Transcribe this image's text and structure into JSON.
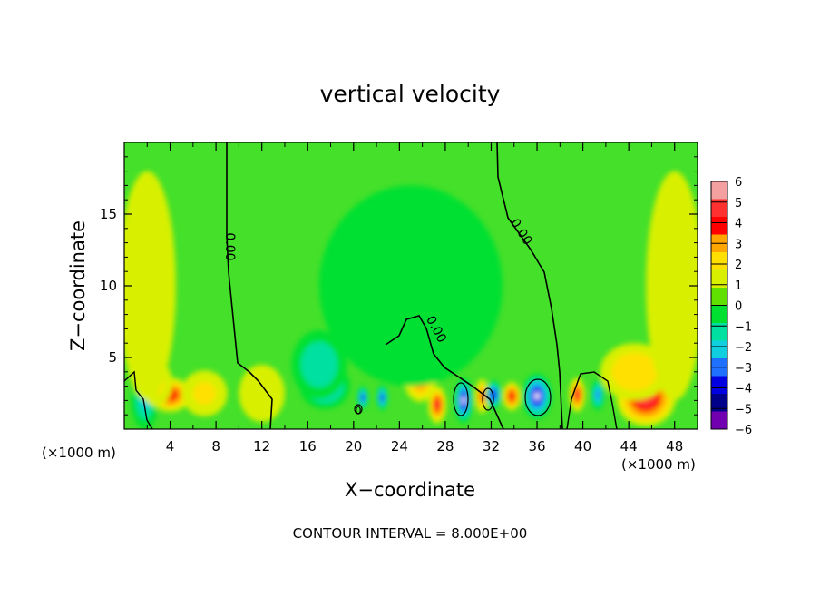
{
  "chart_data": {
    "type": "heatmap",
    "title": "vertical velocity",
    "xlabel": "X−coordinate",
    "ylabel": "Z−coordinate",
    "x_unit_left": "(×1000 m)",
    "x_unit_right": "(×1000 m)",
    "footer": "CONTOUR INTERVAL = 8.000E+00",
    "xlim": [
      0,
      50
    ],
    "ylim": [
      0,
      20
    ],
    "x_ticks": [
      4,
      8,
      12,
      16,
      20,
      24,
      28,
      32,
      36,
      40,
      44,
      48
    ],
    "x_tick_labels": [
      "4",
      "8",
      "12",
      "16",
      "20",
      "24",
      "28",
      "32",
      "36",
      "40",
      "44",
      "48"
    ],
    "y_ticks": [
      5,
      10,
      15
    ],
    "y_tick_labels": [
      "5",
      "10",
      "15"
    ],
    "contour_labels": [
      "0.00",
      "0.00",
      "0.00",
      "0"
    ],
    "colorbar": {
      "levels": [
        6,
        5,
        4,
        3,
        2,
        1,
        0,
        -1,
        -2,
        -3,
        -4,
        -5,
        -6
      ],
      "labels": [
        "6",
        "5",
        "4",
        "3",
        "2",
        "1",
        "0",
        "−1",
        "−2",
        "−3",
        "−4",
        "−5",
        "−6"
      ],
      "colors": [
        "#f4a0a0",
        "#ff3030",
        "#ff0000",
        "#ffa500",
        "#ffe000",
        "#d8f000",
        "#60e000",
        "#00e030",
        "#00e0a0",
        "#10d0e0",
        "#2070ff",
        "#0000e0",
        "#00008a",
        "#7000b0"
      ]
    },
    "features": [
      {
        "x": 1.8,
        "z": 2.0,
        "w": -2.5,
        "rx": 1.2,
        "rz": 2.0
      },
      {
        "x": 4.0,
        "z": 2.4,
        "w": 4.2,
        "rx": 1.8,
        "rz": 1.2
      },
      {
        "x": 2.8,
        "z": 3.2,
        "w": 2.0,
        "rx": 1.4,
        "rz": 1.6
      },
      {
        "x": 7.0,
        "z": 2.5,
        "w": 1.6,
        "rx": 2.0,
        "rz": 1.6
      },
      {
        "x": 12.0,
        "z": 2.5,
        "w": 1.2,
        "rx": 2.0,
        "rz": 2.0
      },
      {
        "x": 17.5,
        "z": 3.0,
        "w": -3.4,
        "rx": 2.2,
        "rz": 1.6
      },
      {
        "x": 17.0,
        "z": 4.5,
        "w": -2.2,
        "rx": 2.4,
        "rz": 2.4
      },
      {
        "x": 20.8,
        "z": 2.2,
        "w": -4.5,
        "rx": 0.5,
        "rz": 0.8
      },
      {
        "x": 22.5,
        "z": 2.2,
        "w": -4.8,
        "rx": 0.5,
        "rz": 0.9
      },
      {
        "x": 25.8,
        "z": 3.5,
        "w": 3.5,
        "rx": 1.4,
        "rz": 1.6
      },
      {
        "x": 27.3,
        "z": 1.7,
        "w": 5.0,
        "rx": 0.8,
        "rz": 1.3
      },
      {
        "x": 29.6,
        "z": 2.0,
        "w": -5.8,
        "rx": 0.8,
        "rz": 1.6
      },
      {
        "x": 31.2,
        "z": 2.3,
        "w": 4.0,
        "rx": 0.6,
        "rz": 1.2
      },
      {
        "x": 32.2,
        "z": 2.4,
        "w": -5.2,
        "rx": 0.7,
        "rz": 1.0
      },
      {
        "x": 33.8,
        "z": 2.3,
        "w": 4.5,
        "rx": 0.8,
        "rz": 1.0
      },
      {
        "x": 36.0,
        "z": 2.3,
        "w": -6.0,
        "rx": 1.3,
        "rz": 1.6
      },
      {
        "x": 39.5,
        "z": 2.4,
        "w": 4.6,
        "rx": 0.7,
        "rz": 1.2
      },
      {
        "x": 41.3,
        "z": 2.4,
        "w": -3.6,
        "rx": 0.6,
        "rz": 1.1
      },
      {
        "x": 45.5,
        "z": 2.2,
        "w": 5.4,
        "rx": 2.6,
        "rz": 2.0
      },
      {
        "x": 44.5,
        "z": 4.0,
        "w": 2.5,
        "rx": 3.0,
        "rz": 2.0
      },
      {
        "x": 48.0,
        "z": 10.0,
        "w": 1.0,
        "rx": 2.5,
        "rz": 8.0
      },
      {
        "x": 2.0,
        "z": 10.0,
        "w": 0.9,
        "rx": 2.5,
        "rz": 8.0
      },
      {
        "x": 25.0,
        "z": 10.0,
        "w": -0.6,
        "rx": 8.0,
        "rz": 7.0
      }
    ]
  }
}
